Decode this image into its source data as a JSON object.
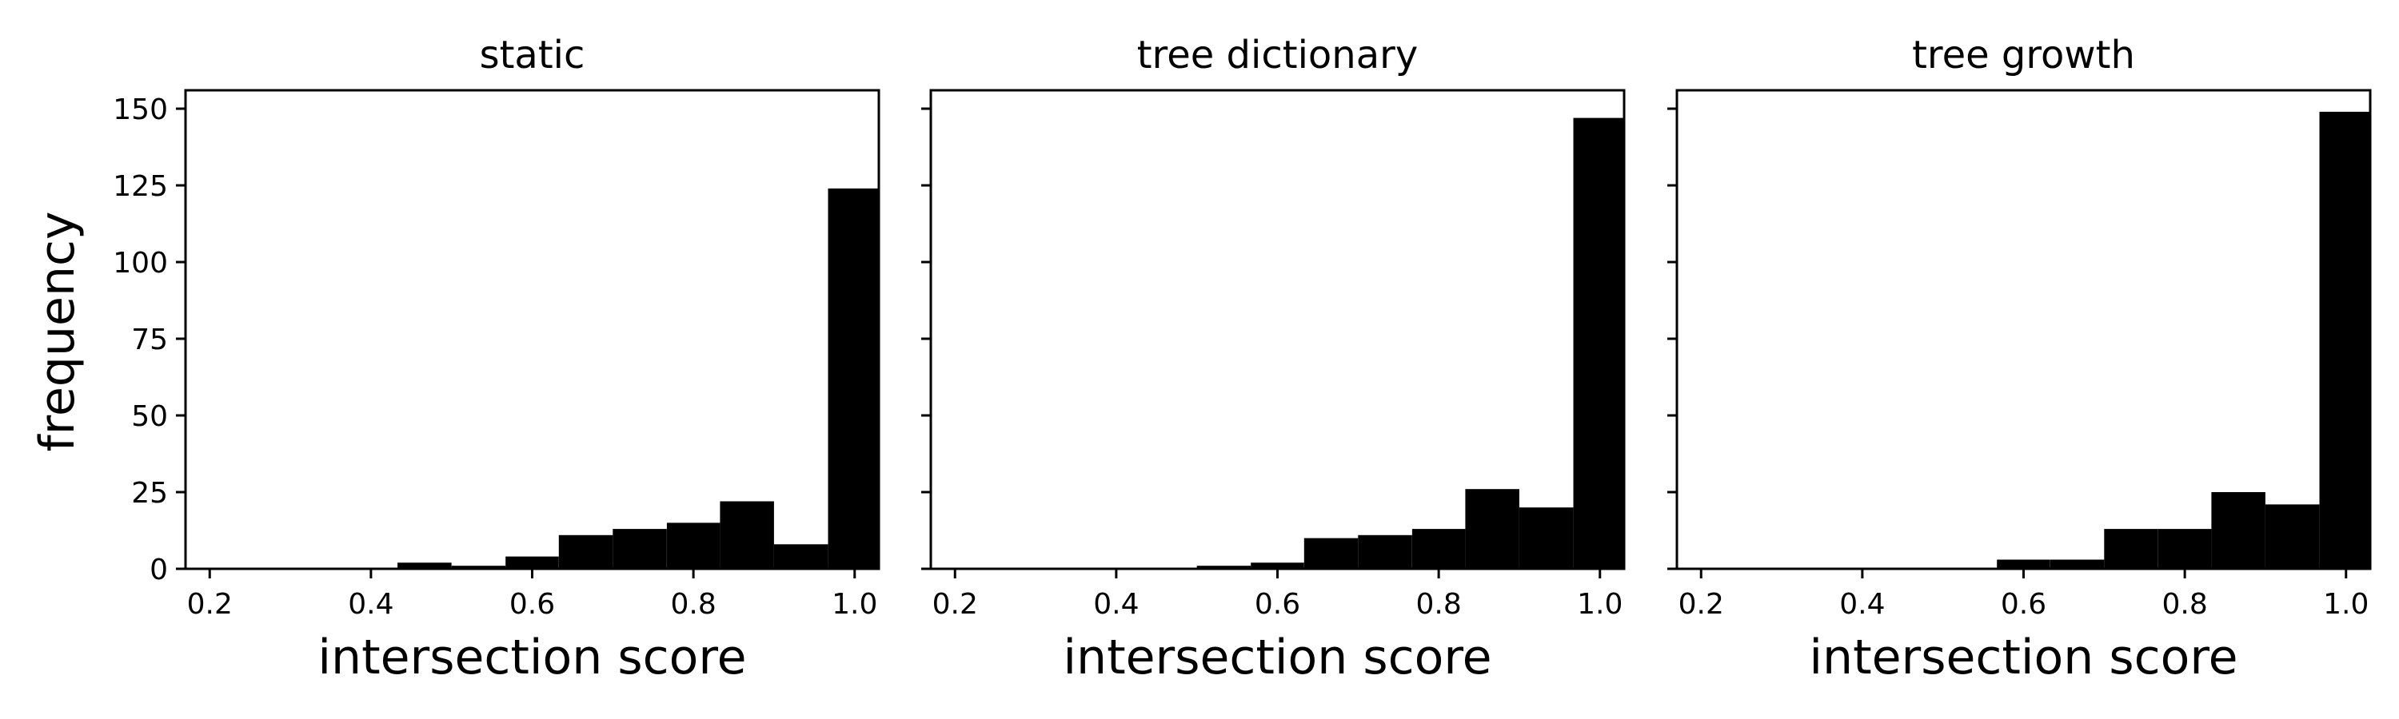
{
  "chart_data": [
    {
      "type": "bar",
      "title": "static",
      "xlabel": "intersection score",
      "ylabel": "frequency",
      "xlim": [
        0.17,
        1.03
      ],
      "ylim": [
        0,
        156
      ],
      "xticks": [
        "0.2",
        "0.4",
        "0.6",
        "0.8",
        "1.0"
      ],
      "yticks": [
        "0",
        "25",
        "50",
        "75",
        "100",
        "125",
        "150"
      ],
      "bin_edges": [
        0.233,
        0.3,
        0.367,
        0.433,
        0.5,
        0.567,
        0.633,
        0.7,
        0.767,
        0.833,
        0.9,
        0.967,
        1.033
      ],
      "values": [
        0,
        0,
        0,
        2,
        1,
        4,
        11,
        13,
        15,
        22,
        8,
        124
      ],
      "color": "#000000"
    },
    {
      "type": "bar",
      "title": "tree dictionary",
      "xlabel": "intersection score",
      "ylabel": "",
      "xlim": [
        0.17,
        1.03
      ],
      "ylim": [
        0,
        156
      ],
      "xticks": [
        "0.2",
        "0.4",
        "0.6",
        "0.8",
        "1.0"
      ],
      "yticks": [],
      "bin_edges": [
        0.5,
        0.567,
        0.633,
        0.7,
        0.767,
        0.833,
        0.9,
        0.967,
        1.033
      ],
      "values": [
        1,
        2,
        10,
        11,
        13,
        26,
        20,
        147
      ],
      "color": "#000000"
    },
    {
      "type": "bar",
      "title": "tree growth",
      "xlabel": "intersection score",
      "ylabel": "",
      "xlim": [
        0.17,
        1.03
      ],
      "ylim": [
        0,
        156
      ],
      "xticks": [
        "0.2",
        "0.4",
        "0.6",
        "0.8",
        "1.0"
      ],
      "yticks": [],
      "bin_edges": [
        0.567,
        0.633,
        0.7,
        0.767,
        0.833,
        0.9,
        0.967,
        1.033
      ],
      "values": [
        3,
        3,
        13,
        13,
        25,
        21,
        149
      ],
      "color": "#000000"
    }
  ]
}
